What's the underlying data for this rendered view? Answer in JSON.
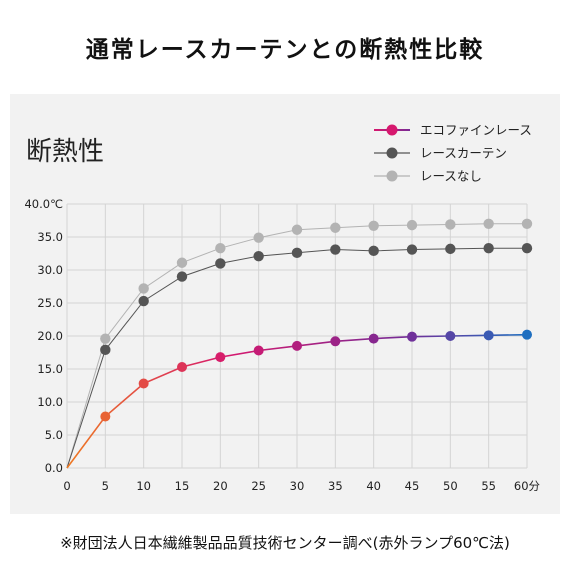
{
  "header": {
    "title": "通常レースカーテンとの断熱性比較"
  },
  "footnote": "※財団法人日本繊維製品品質技術センター調べ(赤外ランプ60℃法)",
  "chart_data": {
    "type": "line",
    "title": "断熱性",
    "xlabel": "",
    "ylabel": "",
    "x": [
      0,
      5,
      10,
      15,
      20,
      25,
      30,
      35,
      40,
      45,
      50,
      55,
      60
    ],
    "x_tick_labels": [
      "0",
      "5",
      "10",
      "15",
      "20",
      "25",
      "30",
      "35",
      "40",
      "45",
      "50",
      "55",
      "60分"
    ],
    "y_tick_labels": [
      "0.0",
      "5.0",
      "10.0",
      "15.0",
      "20.0",
      "25.0",
      "30.0",
      "35.0",
      "40.0℃"
    ],
    "ylim": [
      0,
      40
    ],
    "xlim": [
      0,
      60
    ],
    "grid": true,
    "legend_position": "top-right",
    "series": [
      {
        "name": "エコファインレース",
        "color": "#d6186e",
        "gradient": [
          "#ee7a22",
          "#d6186e",
          "#7a2a95",
          "#1f6fc0"
        ],
        "values": [
          0,
          7.8,
          12.8,
          15.3,
          16.8,
          17.8,
          18.5,
          19.2,
          19.6,
          19.9,
          20.0,
          20.1,
          20.2
        ]
      },
      {
        "name": "レースカーテン",
        "color": "#555555",
        "values": [
          0,
          17.9,
          25.3,
          29.0,
          31.0,
          32.1,
          32.6,
          33.1,
          32.9,
          33.1,
          33.2,
          33.3,
          33.3
        ]
      },
      {
        "name": "レースなし",
        "color": "#b3b3b3",
        "values": [
          0,
          19.6,
          27.2,
          31.1,
          33.3,
          34.9,
          36.1,
          36.4,
          36.7,
          36.8,
          36.9,
          37.0,
          37.0
        ]
      }
    ]
  }
}
